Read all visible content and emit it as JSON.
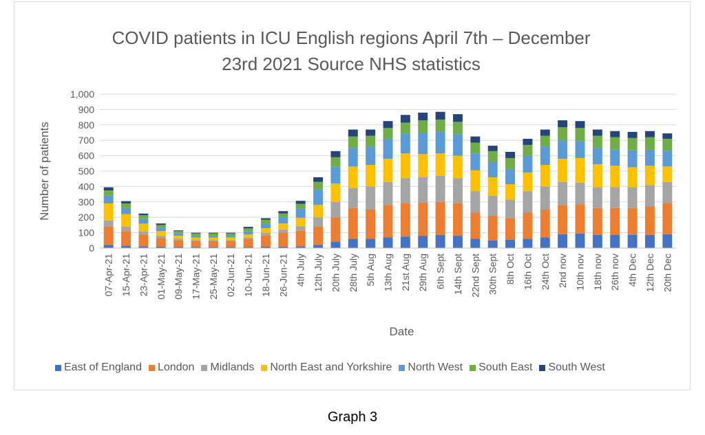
{
  "title_line1": "COVID patients in ICU English regions April 7th – December",
  "title_line2": "23rd 2021 Source NHS statistics",
  "caption": "Graph 3",
  "chart_data": {
    "type": "bar",
    "stacked": true,
    "title": "COVID patients in ICU English regions April 7th – December 23rd 2021 Source NHS statistics",
    "xlabel": "Date",
    "ylabel": "Number of patients",
    "ylim": [
      0,
      1000
    ],
    "yticks": [
      "0",
      "100",
      "200",
      "300",
      "400",
      "500",
      "600",
      "700",
      "800",
      "900",
      "1,000"
    ],
    "grid": true,
    "legend_position": "bottom",
    "categories": [
      "07-Apr-21",
      "15-Apr-21",
      "23-Apr-21",
      "01-May-21",
      "09-May-21",
      "17-May-21",
      "25-May-21",
      "02-Jun-21",
      "10-Jun-21",
      "18-Jun-21",
      "26-Jun-21",
      "4th July",
      "12th July",
      "20th July",
      "28th July",
      "5th Aug",
      "13th Aug",
      "21st Aug",
      "29th Aug",
      "6th Sept",
      "14th Sept",
      "22nd Sept",
      "30th Sept",
      "8th Oct",
      "16th Oct",
      "24th Oct",
      "2nd nov",
      "10th nov",
      "18th nov",
      "26th nov",
      "4th Dec",
      "12th Dec",
      "20th Dec"
    ],
    "series": [
      {
        "name": "East of England",
        "color": "#4472C4",
        "values": [
          20,
          15,
          12,
          10,
          8,
          7,
          7,
          7,
          8,
          9,
          10,
          12,
          20,
          40,
          60,
          60,
          70,
          75,
          80,
          85,
          80,
          60,
          50,
          55,
          60,
          70,
          90,
          95,
          85,
          85,
          85,
          85,
          90
        ]
      },
      {
        "name": "London",
        "color": "#ED7D31",
        "values": [
          120,
          95,
          75,
          55,
          42,
          38,
          38,
          38,
          50,
          75,
          90,
          100,
          120,
          160,
          200,
          190,
          210,
          215,
          215,
          215,
          210,
          170,
          160,
          140,
          170,
          180,
          190,
          190,
          175,
          175,
          175,
          185,
          200
        ]
      },
      {
        "name": "Midlands",
        "color": "#A5A5A5",
        "values": [
          40,
          30,
          22,
          15,
          10,
          8,
          8,
          8,
          10,
          15,
          20,
          30,
          60,
          100,
          130,
          150,
          150,
          165,
          165,
          170,
          165,
          140,
          130,
          120,
          140,
          150,
          150,
          140,
          135,
          135,
          135,
          140,
          140
        ]
      },
      {
        "name": "North East and Yorkshire",
        "color": "#FFC000",
        "values": [
          110,
          80,
          50,
          30,
          20,
          15,
          15,
          15,
          20,
          30,
          40,
          55,
          80,
          120,
          140,
          140,
          150,
          160,
          150,
          145,
          145,
          135,
          120,
          100,
          120,
          140,
          150,
          160,
          150,
          140,
          130,
          125,
          100
        ]
      },
      {
        "name": "North West",
        "color": "#5B9BD5",
        "values": [
          50,
          40,
          30,
          20,
          15,
          12,
          12,
          12,
          20,
          30,
          40,
          60,
          100,
          110,
          120,
          120,
          130,
          130,
          140,
          140,
          140,
          110,
          100,
          100,
          110,
          120,
          120,
          110,
          105,
          105,
          110,
          105,
          100
        ]
      },
      {
        "name": "South East",
        "color": "#70AD47",
        "values": [
          35,
          30,
          25,
          20,
          15,
          15,
          15,
          15,
          20,
          25,
          25,
          30,
          50,
          60,
          75,
          70,
          70,
          70,
          80,
          80,
          80,
          70,
          70,
          70,
          70,
          70,
          85,
          85,
          80,
          80,
          80,
          80,
          80
        ]
      },
      {
        "name": "South West",
        "color": "#264478",
        "values": [
          20,
          15,
          10,
          10,
          5,
          5,
          5,
          5,
          10,
          10,
          15,
          20,
          30,
          40,
          45,
          40,
          45,
          50,
          50,
          50,
          50,
          40,
          35,
          40,
          40,
          40,
          45,
          45,
          40,
          40,
          40,
          40,
          35
        ]
      }
    ]
  }
}
